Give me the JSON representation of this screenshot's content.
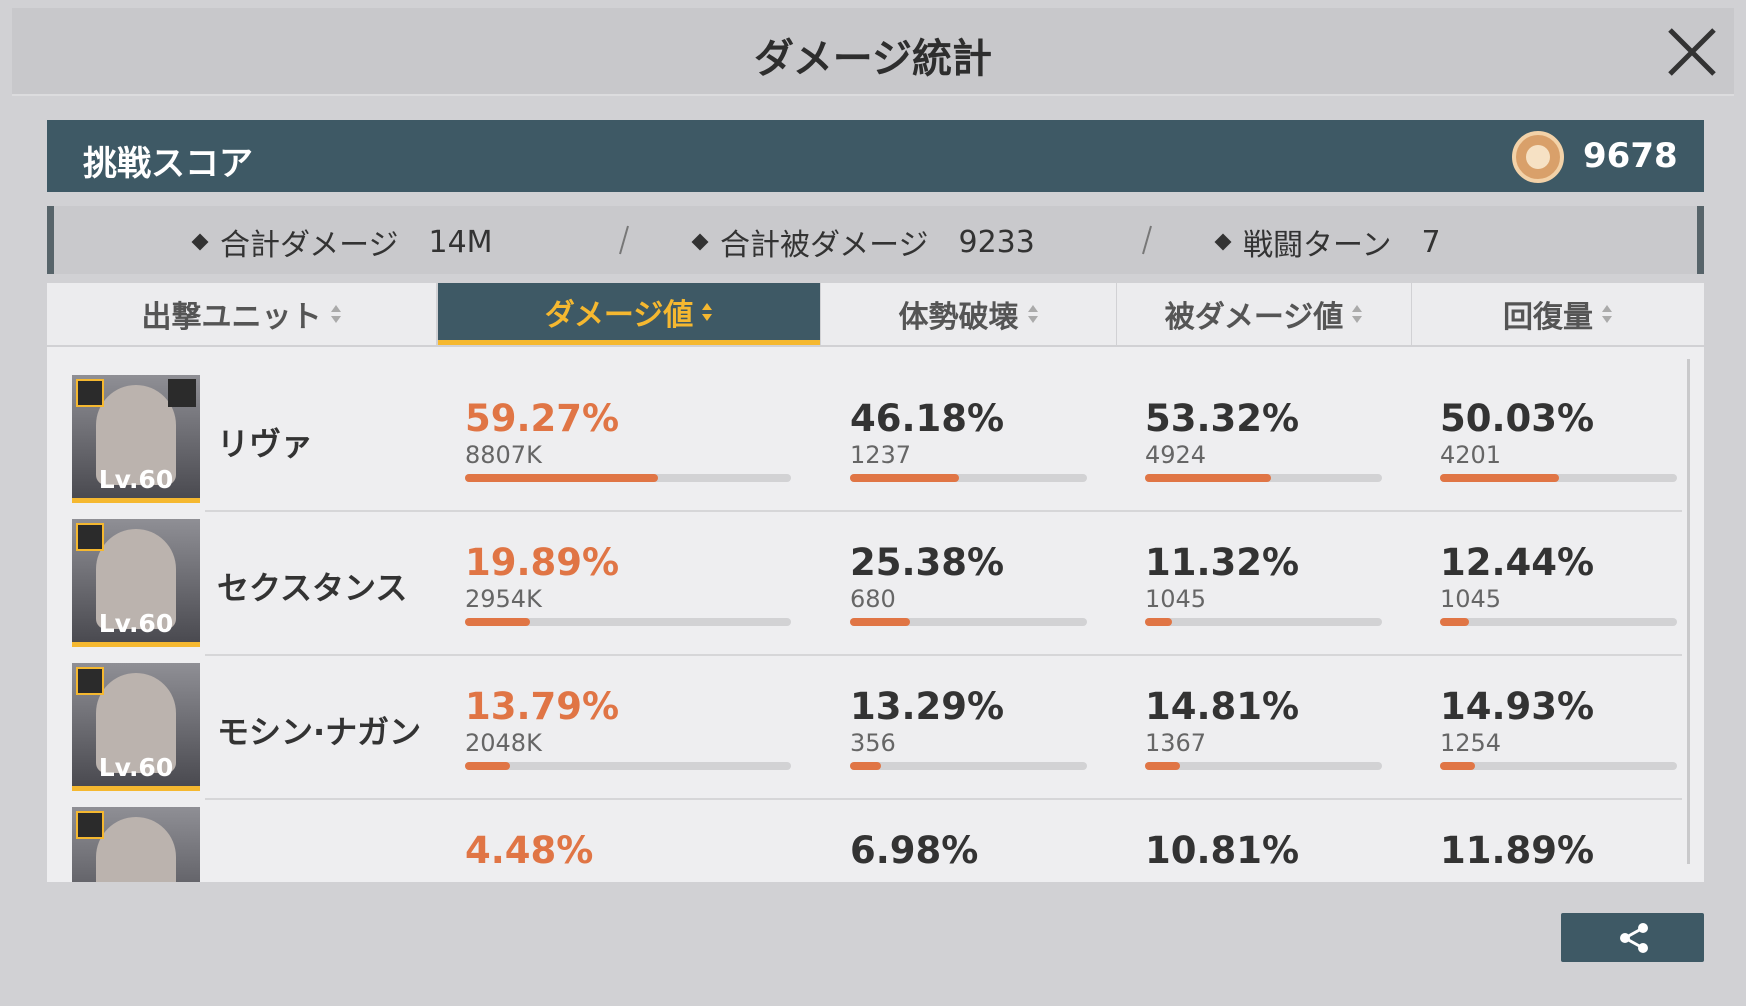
{
  "header": {
    "title": "ダメージ統計"
  },
  "score": {
    "label": "挑戦スコア",
    "value": "9678"
  },
  "summary": [
    {
      "label": "合計ダメージ",
      "value": "14M"
    },
    {
      "label": "合計被ダメージ",
      "value": "9233"
    },
    {
      "label": "戦闘ターン",
      "value": "7"
    }
  ],
  "columns": [
    "出撃ユニット",
    "ダメージ値",
    "体勢破壊",
    "被ダメージ値",
    "回復量"
  ],
  "rows": [
    {
      "name": "リヴァ",
      "level": "Lv.60",
      "cells": [
        {
          "percent": "59.27%",
          "value": "8807K"
        },
        {
          "percent": "46.18%",
          "value": "1237"
        },
        {
          "percent": "53.32%",
          "value": "4924"
        },
        {
          "percent": "50.03%",
          "value": "4201"
        }
      ]
    },
    {
      "name": "セクスタンス",
      "level": "Lv.60",
      "cells": [
        {
          "percent": "19.89%",
          "value": "2954K"
        },
        {
          "percent": "25.38%",
          "value": "680"
        },
        {
          "percent": "11.32%",
          "value": "1045"
        },
        {
          "percent": "12.44%",
          "value": "1045"
        }
      ]
    },
    {
      "name": "モシン·ナガン",
      "level": "Lv.60",
      "cells": [
        {
          "percent": "13.79%",
          "value": "2048K"
        },
        {
          "percent": "13.29%",
          "value": "356"
        },
        {
          "percent": "14.81%",
          "value": "1367"
        },
        {
          "percent": "14.93%",
          "value": "1254"
        }
      ]
    },
    {
      "cells": [
        {
          "percent": "4.48%"
        },
        {
          "percent": "6.98%"
        },
        {
          "percent": "10.81%"
        },
        {
          "percent": "11.89%"
        }
      ]
    }
  ]
}
